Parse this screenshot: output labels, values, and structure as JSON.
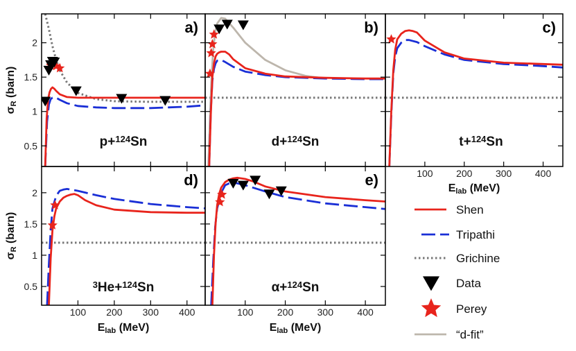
{
  "chart_data": {
    "type": "line",
    "shared": {
      "xlim": [
        0,
        450
      ],
      "ylim": [
        0.2,
        2.42
      ],
      "xticks": [
        100,
        200,
        300,
        400
      ],
      "yticks": [
        0.5,
        1,
        1.5,
        2
      ],
      "ytick_labels": [
        "0.5",
        "1",
        "1.5",
        "2"
      ],
      "xlabel": {
        "main": "E",
        "sub": "lab",
        "rest": " (MeV)"
      },
      "ylabel": {
        "main": "σ",
        "sub": "R",
        "rest": " (barn)"
      }
    },
    "legend": {
      "placement": "bottom-right",
      "items": [
        {
          "key": "shen",
          "label": "Shen",
          "style": "solid",
          "color": "#e8241c"
        },
        {
          "key": "tripathi",
          "label": "Tripathi",
          "style": "dashed",
          "color": "#1a2fd6"
        },
        {
          "key": "grichine",
          "label": "Grichine",
          "style": "dotted",
          "color": "#777777"
        },
        {
          "key": "data",
          "label": "Data",
          "style": "triangle-down",
          "color": "#000000"
        },
        {
          "key": "perey",
          "label": "Perey",
          "style": "star",
          "color": "#e8241c"
        },
        {
          "key": "dfit",
          "label": "“d-fit”",
          "style": "solid",
          "color": "#bdb6ac"
        }
      ]
    },
    "colors": {
      "shen": "#e8241c",
      "tripathi": "#1a2fd6",
      "grichine": "#777777",
      "data": "#000000",
      "perey": "#e8241c",
      "dfit": "#bdb6ac"
    },
    "panels": [
      {
        "id": "a",
        "letter": "a)",
        "reaction": {
          "pre": "p+",
          "sup": "124",
          "post": "Sn"
        },
        "show_xticks": false,
        "show_ylabels": true,
        "series": [
          {
            "key": "grichine",
            "x": [
              10,
              20,
              30,
              40,
              50,
              70,
              100,
              150,
              200,
              300,
              400,
              450
            ],
            "y": [
              2.42,
              2.2,
              1.95,
              1.75,
              1.6,
              1.42,
              1.27,
              1.18,
              1.15,
              1.14,
              1.14,
              1.14
            ]
          },
          {
            "key": "tripathi",
            "x": [
              10,
              15,
              20,
              25,
              30,
              40,
              50,
              70,
              100,
              150,
              200,
              250,
              300,
              350,
              400,
              450
            ],
            "y": [
              0.2,
              0.85,
              1.1,
              1.18,
              1.2,
              1.2,
              1.17,
              1.12,
              1.08,
              1.06,
              1.05,
              1.05,
              1.05,
              1.06,
              1.07,
              1.09
            ]
          },
          {
            "key": "shen",
            "x": [
              10,
              14,
              18,
              22,
              26,
              30,
              35,
              40,
              50,
              70,
              100,
              150,
              200,
              300,
              400,
              450
            ],
            "y": [
              0.2,
              0.9,
              1.18,
              1.28,
              1.33,
              1.35,
              1.33,
              1.3,
              1.25,
              1.21,
              1.2,
              1.2,
              1.2,
              1.2,
              1.2,
              1.2
            ]
          }
        ],
        "data_points": {
          "x": [
            10,
            20,
            25,
            30,
            35,
            95,
            220,
            340
          ],
          "y": [
            1.15,
            1.6,
            1.68,
            1.73,
            1.72,
            1.3,
            1.19,
            1.16
          ]
        },
        "perey_points": {
          "x": [
            25,
            30,
            40,
            50
          ],
          "y": [
            1.67,
            1.7,
            1.66,
            1.63
          ]
        }
      },
      {
        "id": "b",
        "letter": "b)",
        "reaction": {
          "pre": "d+",
          "sup": "124",
          "post": "Sn"
        },
        "show_xticks": false,
        "show_ylabels": false,
        "series": [
          {
            "key": "grichine",
            "x": [
              0,
              450
            ],
            "y": [
              1.2,
              1.2
            ]
          },
          {
            "key": "dfit",
            "x": [
              8,
              12,
              16,
              20,
              25,
              30,
              40,
              50,
              70,
              100,
              150,
              200,
              250,
              300
            ],
            "y": [
              0.2,
              0.9,
              1.5,
              1.9,
              2.15,
              2.28,
              2.36,
              2.35,
              2.22,
              2.0,
              1.75,
              1.6,
              1.52,
              1.48
            ]
          },
          {
            "key": "tripathi",
            "x": [
              10,
              14,
              18,
              22,
              26,
              30,
              40,
              50,
              70,
              100,
              150,
              200,
              300,
              400,
              450
            ],
            "y": [
              0.2,
              1.0,
              1.45,
              1.62,
              1.7,
              1.74,
              1.75,
              1.72,
              1.65,
              1.58,
              1.53,
              1.5,
              1.48,
              1.47,
              1.47
            ]
          },
          {
            "key": "shen",
            "x": [
              10,
              14,
              18,
              22,
              26,
              30,
              35,
              40,
              50,
              60,
              70,
              100,
              150,
              200,
              300,
              400,
              450
            ],
            "y": [
              0.2,
              0.95,
              1.5,
              1.7,
              1.8,
              1.84,
              1.86,
              1.87,
              1.87,
              1.83,
              1.76,
              1.63,
              1.55,
              1.51,
              1.49,
              1.48,
              1.48
            ]
          }
        ],
        "data_points": {
          "x": [
            35,
            55,
            95
          ],
          "y": [
            2.2,
            2.27,
            2.26
          ]
        },
        "perey_points": {
          "x": [
            12,
            15,
            18,
            22
          ],
          "y": [
            1.55,
            1.85,
            1.98,
            2.12
          ]
        }
      },
      {
        "id": "c",
        "letter": "c)",
        "reaction": {
          "pre": "t+",
          "sup": "124",
          "post": "Sn"
        },
        "show_xticks": true,
        "show_ylabels": false,
        "series": [
          {
            "key": "grichine",
            "x": [
              0,
              450
            ],
            "y": [
              1.2,
              1.2
            ]
          },
          {
            "key": "tripathi",
            "x": [
              10,
              15,
              20,
              25,
              30,
              40,
              50,
              60,
              80,
              100,
              150,
              200,
              300,
              400,
              450
            ],
            "y": [
              0.2,
              0.95,
              1.55,
              1.8,
              1.92,
              2.0,
              2.04,
              2.04,
              2.01,
              1.95,
              1.83,
              1.75,
              1.69,
              1.66,
              1.64
            ]
          },
          {
            "key": "shen",
            "x": [
              10,
              15,
              20,
              25,
              30,
              40,
              50,
              60,
              70,
              80,
              100,
              150,
              200,
              300,
              400,
              450
            ],
            "y": [
              0.2,
              1.0,
              1.6,
              1.9,
              2.05,
              2.13,
              2.17,
              2.18,
              2.17,
              2.15,
              2.03,
              1.86,
              1.77,
              1.71,
              1.69,
              1.68
            ]
          }
        ],
        "data_points": {
          "x": [],
          "y": []
        },
        "perey_points": {
          "x": [
            15
          ],
          "y": [
            2.05
          ]
        }
      },
      {
        "id": "d",
        "letter": "d)",
        "reaction": {
          "pre": "",
          "presup": "3",
          "prebase": "He+",
          "sup": "124",
          "post": "Sn"
        },
        "show_xticks": true,
        "show_ylabels": true,
        "series": [
          {
            "key": "grichine",
            "x": [
              0,
              450
            ],
            "y": [
              1.2,
              1.2
            ]
          },
          {
            "key": "tripathi",
            "x": [
              15,
              20,
              25,
              30,
              40,
              50,
              60,
              70,
              80,
              100,
              150,
              200,
              300,
              400,
              450
            ],
            "y": [
              0.2,
              0.85,
              1.4,
              1.75,
              1.95,
              2.03,
              2.05,
              2.06,
              2.05,
              2.03,
              1.96,
              1.9,
              1.82,
              1.77,
              1.75
            ]
          },
          {
            "key": "shen",
            "x": [
              20,
              25,
              30,
              35,
              40,
              50,
              60,
              70,
              80,
              90,
              100,
              120,
              150,
              200,
              300,
              400,
              450
            ],
            "y": [
              0.2,
              0.95,
              1.4,
              1.62,
              1.75,
              1.86,
              1.92,
              1.95,
              1.97,
              1.98,
              1.96,
              1.88,
              1.8,
              1.73,
              1.69,
              1.68,
              1.68
            ]
          }
        ],
        "data_points": {
          "x": [],
          "y": []
        },
        "perey_points": {
          "x": [
            30,
            37
          ],
          "y": [
            1.48,
            1.8
          ]
        }
      },
      {
        "id": "e",
        "letter": "e)",
        "reaction": {
          "pre": "α+",
          "sup": "124",
          "post": "Sn"
        },
        "show_xticks": true,
        "show_ylabels": false,
        "series": [
          {
            "key": "grichine",
            "x": [
              0,
              450
            ],
            "y": [
              1.2,
              1.2
            ]
          },
          {
            "key": "tripathi",
            "x": [
              15,
              20,
              25,
              30,
              40,
              50,
              60,
              70,
              80,
              100,
              120,
              150,
              200,
              300,
              400,
              450
            ],
            "y": [
              0.2,
              0.9,
              1.45,
              1.75,
              2.0,
              2.12,
              2.15,
              2.16,
              2.15,
              2.12,
              2.08,
              2.02,
              1.93,
              1.83,
              1.77,
              1.74
            ]
          },
          {
            "key": "shen",
            "x": [
              18,
              22,
              26,
              30,
              35,
              40,
              50,
              60,
              70,
              80,
              100,
              120,
              150,
              200,
              300,
              400,
              450
            ],
            "y": [
              0.2,
              1.0,
              1.5,
              1.8,
              1.98,
              2.08,
              2.17,
              2.21,
              2.23,
              2.24,
              2.22,
              2.18,
              2.1,
              2.02,
              1.93,
              1.88,
              1.86
            ]
          }
        ],
        "data_points": {
          "x": [
            70,
            95,
            125,
            160,
            190
          ],
          "y": [
            2.15,
            2.12,
            2.2,
            1.98,
            2.03
          ]
        },
        "perey_points": {
          "x": [
            37,
            42
          ],
          "y": [
            1.85,
            1.97
          ]
        }
      }
    ]
  }
}
